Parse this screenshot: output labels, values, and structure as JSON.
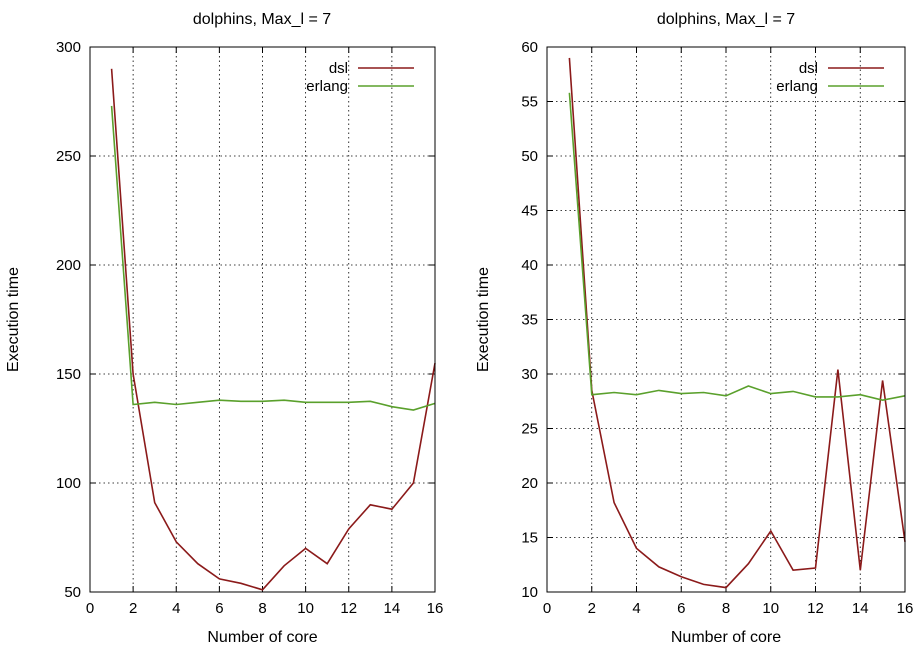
{
  "chart_data": [
    {
      "type": "line",
      "title": "dolphins, Max_l = 7",
      "xlabel": "Number of core",
      "ylabel": "Execution time",
      "xlim": [
        0,
        16
      ],
      "ylim": [
        50,
        300
      ],
      "xticks": [
        0,
        2,
        4,
        6,
        8,
        10,
        12,
        14,
        16
      ],
      "yticks": [
        50,
        100,
        150,
        200,
        250,
        300
      ],
      "grid": true,
      "legend_position": "top-right",
      "series": [
        {
          "name": "dsl",
          "color": "#8b1a1a",
          "x": [
            1,
            2,
            3,
            4,
            5,
            6,
            7,
            8,
            9,
            10,
            11,
            12,
            13,
            14,
            15,
            16
          ],
          "y": [
            290,
            150,
            91,
            73,
            63,
            56,
            54,
            51,
            62,
            70,
            63,
            79,
            90,
            88,
            100,
            155
          ]
        },
        {
          "name": "erlang",
          "color": "#5aa02c",
          "x": [
            1,
            2,
            3,
            4,
            5,
            6,
            7,
            8,
            9,
            10,
            11,
            12,
            13,
            14,
            15,
            16
          ],
          "y": [
            273,
            136,
            137,
            136,
            137,
            138,
            137.5,
            137.5,
            138,
            137,
            137,
            137,
            137.5,
            135,
            133.5,
            136.5
          ]
        }
      ]
    },
    {
      "type": "line",
      "title": "dolphins, Max_l = 7",
      "xlabel": "Number of core",
      "ylabel": "Execution time",
      "xlim": [
        0,
        16
      ],
      "ylim": [
        10,
        60
      ],
      "xticks": [
        0,
        2,
        4,
        6,
        8,
        10,
        12,
        14,
        16
      ],
      "yticks": [
        10,
        15,
        20,
        25,
        30,
        35,
        40,
        45,
        50,
        55,
        60
      ],
      "grid": true,
      "legend_position": "top-right",
      "series": [
        {
          "name": "dsl",
          "color": "#8b1a1a",
          "x": [
            1,
            2,
            3,
            4,
            5,
            6,
            7,
            8,
            9,
            10,
            11,
            12,
            13,
            14,
            15,
            16
          ],
          "y": [
            59,
            28.5,
            18.2,
            14,
            12.3,
            11.4,
            10.7,
            10.4,
            12.6,
            15.6,
            12,
            12.2,
            30.4,
            12,
            29.4,
            14.6
          ]
        },
        {
          "name": "erlang",
          "color": "#5aa02c",
          "x": [
            1,
            2,
            3,
            4,
            5,
            6,
            7,
            8,
            9,
            10,
            11,
            12,
            13,
            14,
            15,
            16
          ],
          "y": [
            55.8,
            28.1,
            28.3,
            28.1,
            28.5,
            28.2,
            28.3,
            28,
            28.9,
            28.2,
            28.4,
            27.9,
            27.9,
            28.1,
            27.6,
            28
          ]
        }
      ]
    }
  ]
}
